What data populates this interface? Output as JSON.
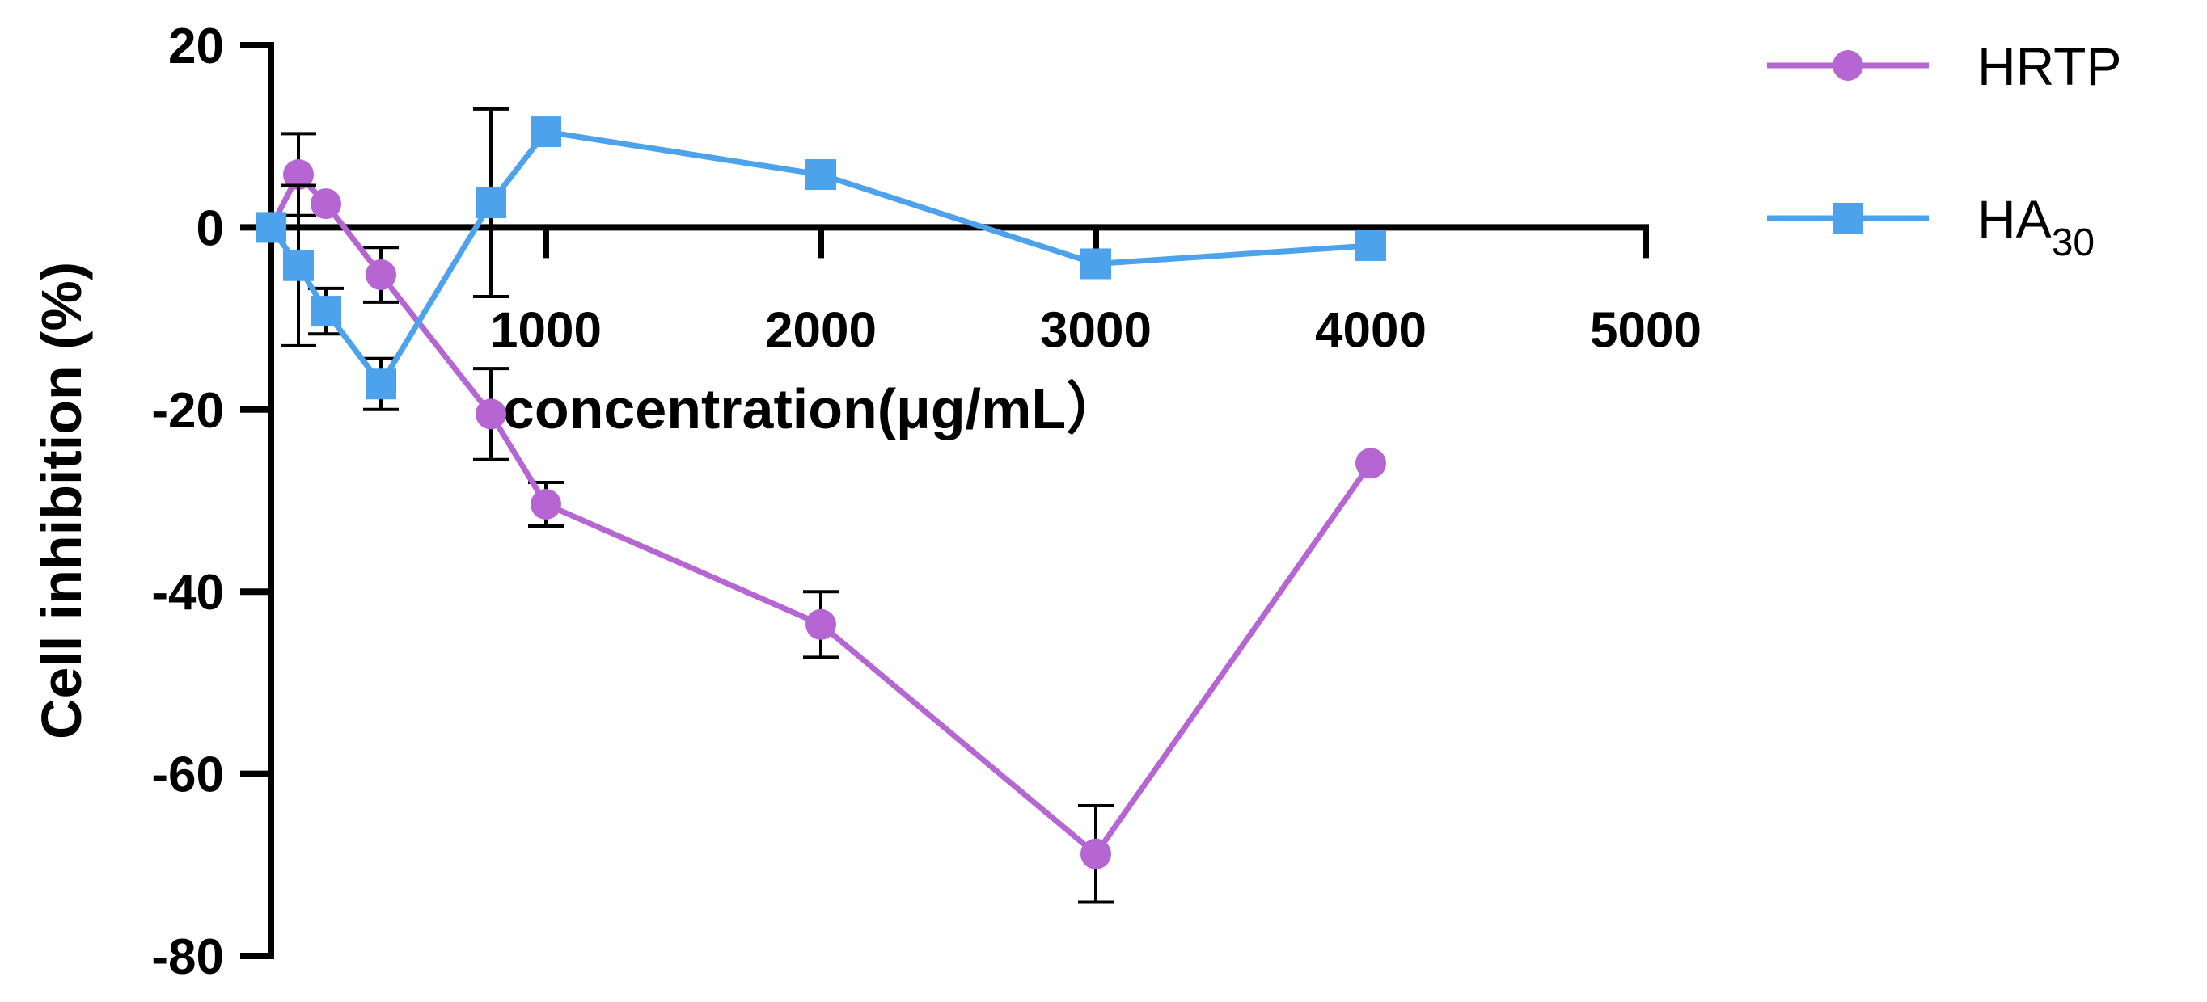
{
  "chart_data": {
    "type": "line",
    "title": "",
    "xlabel": "concentration(μg/mL）",
    "ylabel": "Cell inhibition (%)",
    "xlim": [
      0,
      5000
    ],
    "ylim": [
      -80,
      20
    ],
    "x_ticks": [
      "1000",
      "2000",
      "3000",
      "4000",
      "5000"
    ],
    "y_ticks": [
      "20",
      "0",
      "-20",
      "-40",
      "-60",
      "-80"
    ],
    "legend_position": "top-right",
    "series": [
      {
        "name": "HRTP",
        "base": "HRTP",
        "sub": "",
        "marker": "circle",
        "color": "#b666d2",
        "points": [
          {
            "x": 0,
            "y": 0,
            "err": 0
          },
          {
            "x": 100,
            "y": 5.8,
            "err": 4.5
          },
          {
            "x": 200,
            "y": 2.6,
            "err": 0
          },
          {
            "x": 400,
            "y": -5.2,
            "err": 3.0
          },
          {
            "x": 800,
            "y": -20.5,
            "err": 5.0
          },
          {
            "x": 1000,
            "y": -30.4,
            "err": 2.4
          },
          {
            "x": 2000,
            "y": -43.6,
            "err": 3.6
          },
          {
            "x": 3000,
            "y": -68.8,
            "err": 5.3
          },
          {
            "x": 4000,
            "y": -25.9,
            "err": 0
          }
        ]
      },
      {
        "name": "HA30",
        "base": "HA",
        "sub": "30",
        "marker": "square",
        "color": "#4ca3ec",
        "points": [
          {
            "x": 0,
            "y": 0,
            "err": 0
          },
          {
            "x": 100,
            "y": -4.2,
            "err": 8.8
          },
          {
            "x": 200,
            "y": -9.2,
            "err": 2.5
          },
          {
            "x": 400,
            "y": -17.2,
            "err": 2.8
          },
          {
            "x": 800,
            "y": 2.7,
            "err": 10.3
          },
          {
            "x": 1000,
            "y": 10.5,
            "err": 0
          },
          {
            "x": 2000,
            "y": 5.8,
            "err": 0
          },
          {
            "x": 3000,
            "y": -4.0,
            "err": 0
          },
          {
            "x": 4000,
            "y": -2.0,
            "err": 0
          }
        ]
      }
    ]
  }
}
